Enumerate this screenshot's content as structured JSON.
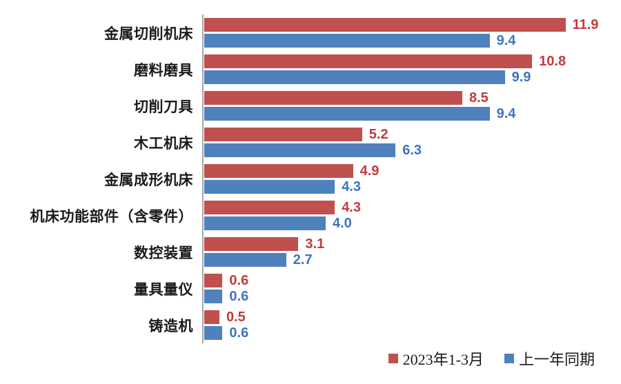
{
  "chart_data": {
    "type": "bar",
    "orientation": "horizontal",
    "title": "",
    "categories": [
      "金属切削机床",
      "磨料磨具",
      "切削刀具",
      "木工机床",
      "金属成形机床",
      "机床功能部件（含零件）",
      "数控装置",
      "量具量仪",
      "铸造机"
    ],
    "series": [
      {
        "name": "2023年1-3月",
        "color": "#c0504d",
        "label_color": "#c23b3d",
        "values": [
          11.9,
          10.8,
          8.5,
          5.2,
          4.9,
          4.3,
          3.1,
          0.6,
          0.5
        ]
      },
      {
        "name": "上一年同期",
        "color": "#4f81bd",
        "label_color": "#3e74c4",
        "values": [
          9.4,
          9.9,
          9.4,
          6.3,
          4.3,
          4.0,
          2.7,
          0.6,
          0.6
        ]
      }
    ],
    "value_labels_shown": true,
    "value_label_decimals": 1,
    "legend_position": "bottom-right",
    "axis": {
      "baseline_color": "#a6a6a6",
      "xlim": [
        0,
        13.75
      ],
      "gridlines": false,
      "tick_labels_shown": false
    }
  }
}
